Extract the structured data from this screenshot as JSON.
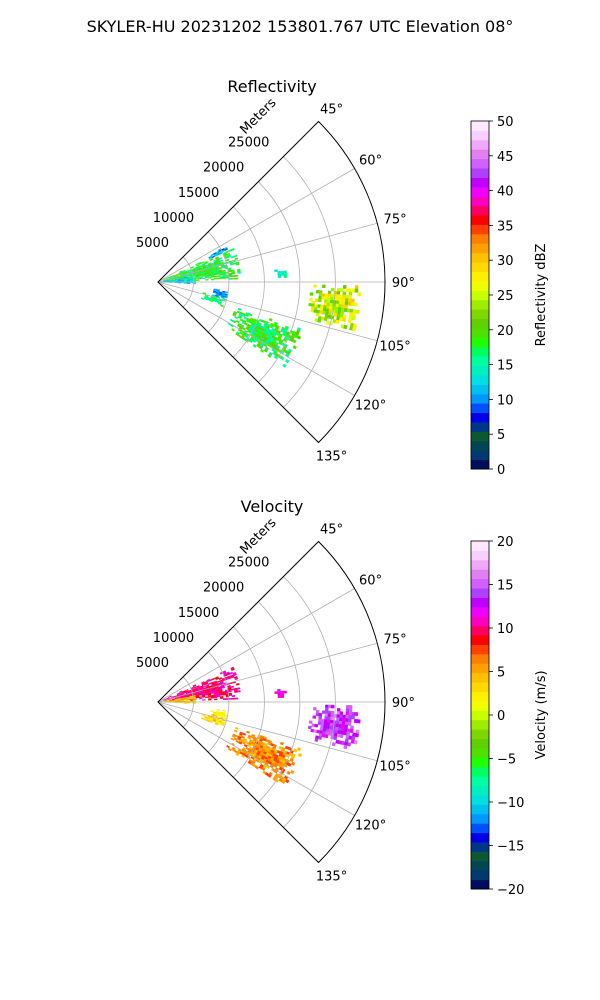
{
  "figure": {
    "suptitle": "SKYLER-HU  20231202  153801.767 UTC Elevation 08°"
  },
  "chart_data": [
    {
      "type": "heatmap",
      "projection": "polar-sector",
      "title": "Reflectivity",
      "range_label": "Meters",
      "range_ticks": [
        5000,
        10000,
        15000,
        20000,
        25000
      ],
      "range_tick_labels": [
        "5000",
        "10000",
        "15000",
        "20000",
        "25000"
      ],
      "range_max": 32000,
      "azimuth_range": [
        45,
        135
      ],
      "azimuth_ticks": [
        45,
        60,
        75,
        90,
        105,
        120,
        135
      ],
      "azimuth_tick_labels": [
        "45°",
        "60°",
        "75°",
        "90°",
        "105°",
        "120°",
        "135°"
      ],
      "grid": true,
      "colorbar": {
        "label": "Reflectivity dBZ",
        "vmin": 0,
        "vmax": 50,
        "ticks": [
          0,
          5,
          10,
          15,
          20,
          25,
          30,
          35,
          40,
          45,
          50
        ],
        "tick_labels": [
          "0",
          "5",
          "10",
          "15",
          "20",
          "25",
          "30",
          "35",
          "40",
          "45",
          "50"
        ],
        "colors": [
          "#000d5e",
          "#01386f",
          "#024555",
          "#0d5733",
          "#00368a",
          "#0000e6",
          "#0050ff",
          "#0098ff",
          "#00c0f0",
          "#00e0e0",
          "#00f0c0",
          "#00ffa0",
          "#00ff60",
          "#20ff00",
          "#50e000",
          "#60d000",
          "#7ed800",
          "#a0ec00",
          "#c8ff00",
          "#f0ff00",
          "#fff000",
          "#ffd800",
          "#ffc000",
          "#ffa000",
          "#ff8000",
          "#ff4000",
          "#ff0000",
          "#ff0060",
          "#ff00c0",
          "#f000ff",
          "#c000ff",
          "#b040ff",
          "#d060ff",
          "#e080f0",
          "#f0a8f8",
          "#f8d0ff",
          "#ffe8ff"
        ]
      },
      "cells": [
        {
          "az_from": 65,
          "az_to": 88,
          "r_from": 800,
          "r_to": 11500,
          "value": 18,
          "jitter": 4
        },
        {
          "az_from": 62,
          "az_to": 66,
          "r_from": 7500,
          "r_to": 11000,
          "value": 11,
          "jitter": 3
        },
        {
          "az_from": 80,
          "az_to": 93,
          "r_from": 300,
          "r_to": 5200,
          "value": 13,
          "jitter": 3
        },
        {
          "az_from": 84,
          "az_to": 88,
          "r_from": 16500,
          "r_to": 18000,
          "value": 15,
          "jitter": 2
        },
        {
          "az_from": 91,
          "az_to": 104,
          "r_from": 21500,
          "r_to": 28500,
          "value": 25,
          "jitter": 5
        },
        {
          "az_from": 97,
          "az_to": 104,
          "r_from": 7500,
          "r_to": 10000,
          "value": 10,
          "jitter": 2
        },
        {
          "az_from": 103,
          "az_to": 111,
          "r_from": 6500,
          "r_to": 9500,
          "value": 17,
          "jitter": 3
        },
        {
          "az_from": 108,
          "az_to": 124,
          "r_from": 11500,
          "r_to": 21500,
          "value": 18,
          "jitter": 4
        }
      ]
    },
    {
      "type": "heatmap",
      "projection": "polar-sector",
      "title": "Velocity",
      "range_label": "Meters",
      "range_ticks": [
        5000,
        10000,
        15000,
        20000,
        25000
      ],
      "range_tick_labels": [
        "5000",
        "10000",
        "15000",
        "20000",
        "25000"
      ],
      "range_max": 32000,
      "azimuth_range": [
        45,
        135
      ],
      "azimuth_ticks": [
        45,
        60,
        75,
        90,
        105,
        120,
        135
      ],
      "azimuth_tick_labels": [
        "45°",
        "60°",
        "75°",
        "90°",
        "105°",
        "120°",
        "135°"
      ],
      "grid": true,
      "colorbar": {
        "label": "Velocity (m/s)",
        "vmin": -20,
        "vmax": 20,
        "ticks": [
          -20,
          -15,
          -10,
          -5,
          0,
          5,
          10,
          15,
          20
        ],
        "tick_labels": [
          "−20",
          "−15",
          "−10",
          "−5",
          "0",
          "5",
          "10",
          "15",
          "20"
        ],
        "colors": [
          "#000d5e",
          "#01386f",
          "#024555",
          "#0d5733",
          "#00368a",
          "#0000e6",
          "#0050ff",
          "#0098ff",
          "#00c0f0",
          "#00e0e0",
          "#00f0c0",
          "#00ffa0",
          "#00ff60",
          "#20ff00",
          "#50e000",
          "#60d000",
          "#7ed800",
          "#a0ec00",
          "#c8ff00",
          "#f0ff00",
          "#fff000",
          "#ffd800",
          "#ffc000",
          "#ffa000",
          "#ff8000",
          "#ff4000",
          "#ff0000",
          "#ff0060",
          "#ff00c0",
          "#f000ff",
          "#c000ff",
          "#b040ff",
          "#d060ff",
          "#e080f0",
          "#f0a8f8",
          "#f8d0ff",
          "#ffe8ff"
        ]
      },
      "cells": [
        {
          "az_from": 65,
          "az_to": 88,
          "r_from": 800,
          "r_to": 11500,
          "value": 10,
          "jitter": 2
        },
        {
          "az_from": 80,
          "az_to": 93,
          "r_from": 300,
          "r_to": 5200,
          "value": 4,
          "jitter": 3
        },
        {
          "az_from": 84,
          "az_to": 88,
          "r_from": 16500,
          "r_to": 18000,
          "value": 11,
          "jitter": 1
        },
        {
          "az_from": 91,
          "az_to": 104,
          "r_from": 21500,
          "r_to": 28500,
          "value": 14,
          "jitter": 2
        },
        {
          "az_from": 97,
          "az_to": 104,
          "r_from": 7500,
          "r_to": 10000,
          "value": 2,
          "jitter": 1
        },
        {
          "az_from": 103,
          "az_to": 111,
          "r_from": 6500,
          "r_to": 9500,
          "value": 3,
          "jitter": 2
        },
        {
          "az_from": 108,
          "az_to": 124,
          "r_from": 11500,
          "r_to": 21500,
          "value": 6,
          "jitter": 2
        }
      ]
    }
  ]
}
